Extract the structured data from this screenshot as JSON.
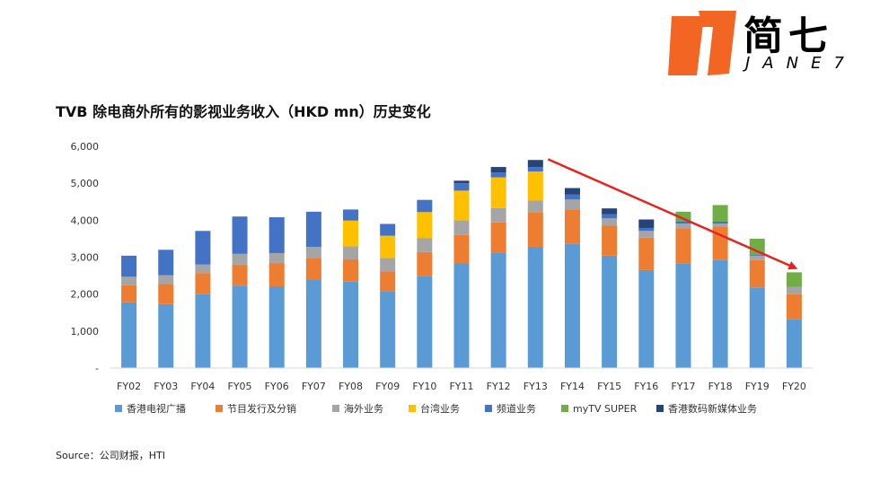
{
  "logo": {
    "cn": "简七",
    "en": "JANE7"
  },
  "colors": {
    "logo_orange": "#F26522",
    "arrow": "#E8231E",
    "series": [
      "#5B9BD5",
      "#ED7D31",
      "#A5A5A5",
      "#FFC000",
      "#4472C4",
      "#70AD47",
      "#264478"
    ]
  },
  "title": "TVB 除电商外所有的影视业务收入（HKD mn）历史变化",
  "source": "Source：公司财报，HTI",
  "chart_data": {
    "type": "bar",
    "stacked": true,
    "title": "TVB 除电商外所有的影视业务收入（HKD mn）历史变化",
    "xlabel": "",
    "ylabel": "",
    "ylim": [
      0,
      6000
    ],
    "yticks": [
      {
        "value": 0,
        "label": "-"
      },
      {
        "value": 1000,
        "label": "1,000"
      },
      {
        "value": 2000,
        "label": "2,000"
      },
      {
        "value": 3000,
        "label": "3,000"
      },
      {
        "value": 4000,
        "label": "4,000"
      },
      {
        "value": 5000,
        "label": "5,000"
      },
      {
        "value": 6000,
        "label": "6,000"
      }
    ],
    "legend_position": "bottom",
    "grid": false,
    "categories": [
      "FY02",
      "FY03",
      "FY04",
      "FY05",
      "FY06",
      "FY07",
      "FY08",
      "FY09",
      "FY10",
      "FY11",
      "FY12",
      "FY13",
      "FY14",
      "FY15",
      "FY16",
      "FY17",
      "FY18",
      "FY19",
      "FY20"
    ],
    "series": [
      {
        "name": "香港电视广播",
        "values": [
          1780,
          1730,
          2000,
          2230,
          2210,
          2380,
          2340,
          2080,
          2480,
          2830,
          3130,
          3280,
          3360,
          3040,
          2650,
          2820,
          2920,
          2180,
          1320
        ]
      },
      {
        "name": "节目发行及分销",
        "values": [
          460,
          540,
          570,
          570,
          620,
          600,
          600,
          530,
          660,
          770,
          810,
          940,
          930,
          820,
          880,
          960,
          910,
          740,
          680
        ]
      },
      {
        "name": "海外业务",
        "values": [
          230,
          240,
          230,
          290,
          280,
          300,
          350,
          370,
          380,
          400,
          390,
          310,
          270,
          190,
          180,
          130,
          80,
          120,
          190
        ]
      },
      {
        "name": "台湾业务",
        "values": [
          0,
          0,
          0,
          0,
          0,
          0,
          700,
          600,
          700,
          800,
          830,
          790,
          0,
          0,
          0,
          0,
          0,
          0,
          0
        ]
      },
      {
        "name": "频道业务",
        "values": [
          570,
          690,
          910,
          1010,
          970,
          950,
          300,
          320,
          330,
          200,
          130,
          120,
          140,
          110,
          80,
          60,
          50,
          30,
          0
        ]
      },
      {
        "name": "myTV SUPER",
        "values": [
          0,
          0,
          0,
          0,
          0,
          0,
          0,
          0,
          0,
          0,
          0,
          0,
          0,
          0,
          0,
          260,
          450,
          430,
          400
        ]
      },
      {
        "name": "香港数码新媒体业务",
        "values": [
          0,
          0,
          0,
          0,
          0,
          0,
          0,
          0,
          0,
          70,
          150,
          190,
          170,
          160,
          230,
          0,
          0,
          0,
          0
        ]
      }
    ],
    "annotations": [
      {
        "type": "arrow",
        "from": {
          "x": "FY13",
          "y": 5650
        },
        "to": {
          "x": "FY20",
          "y": 2700
        }
      }
    ]
  }
}
